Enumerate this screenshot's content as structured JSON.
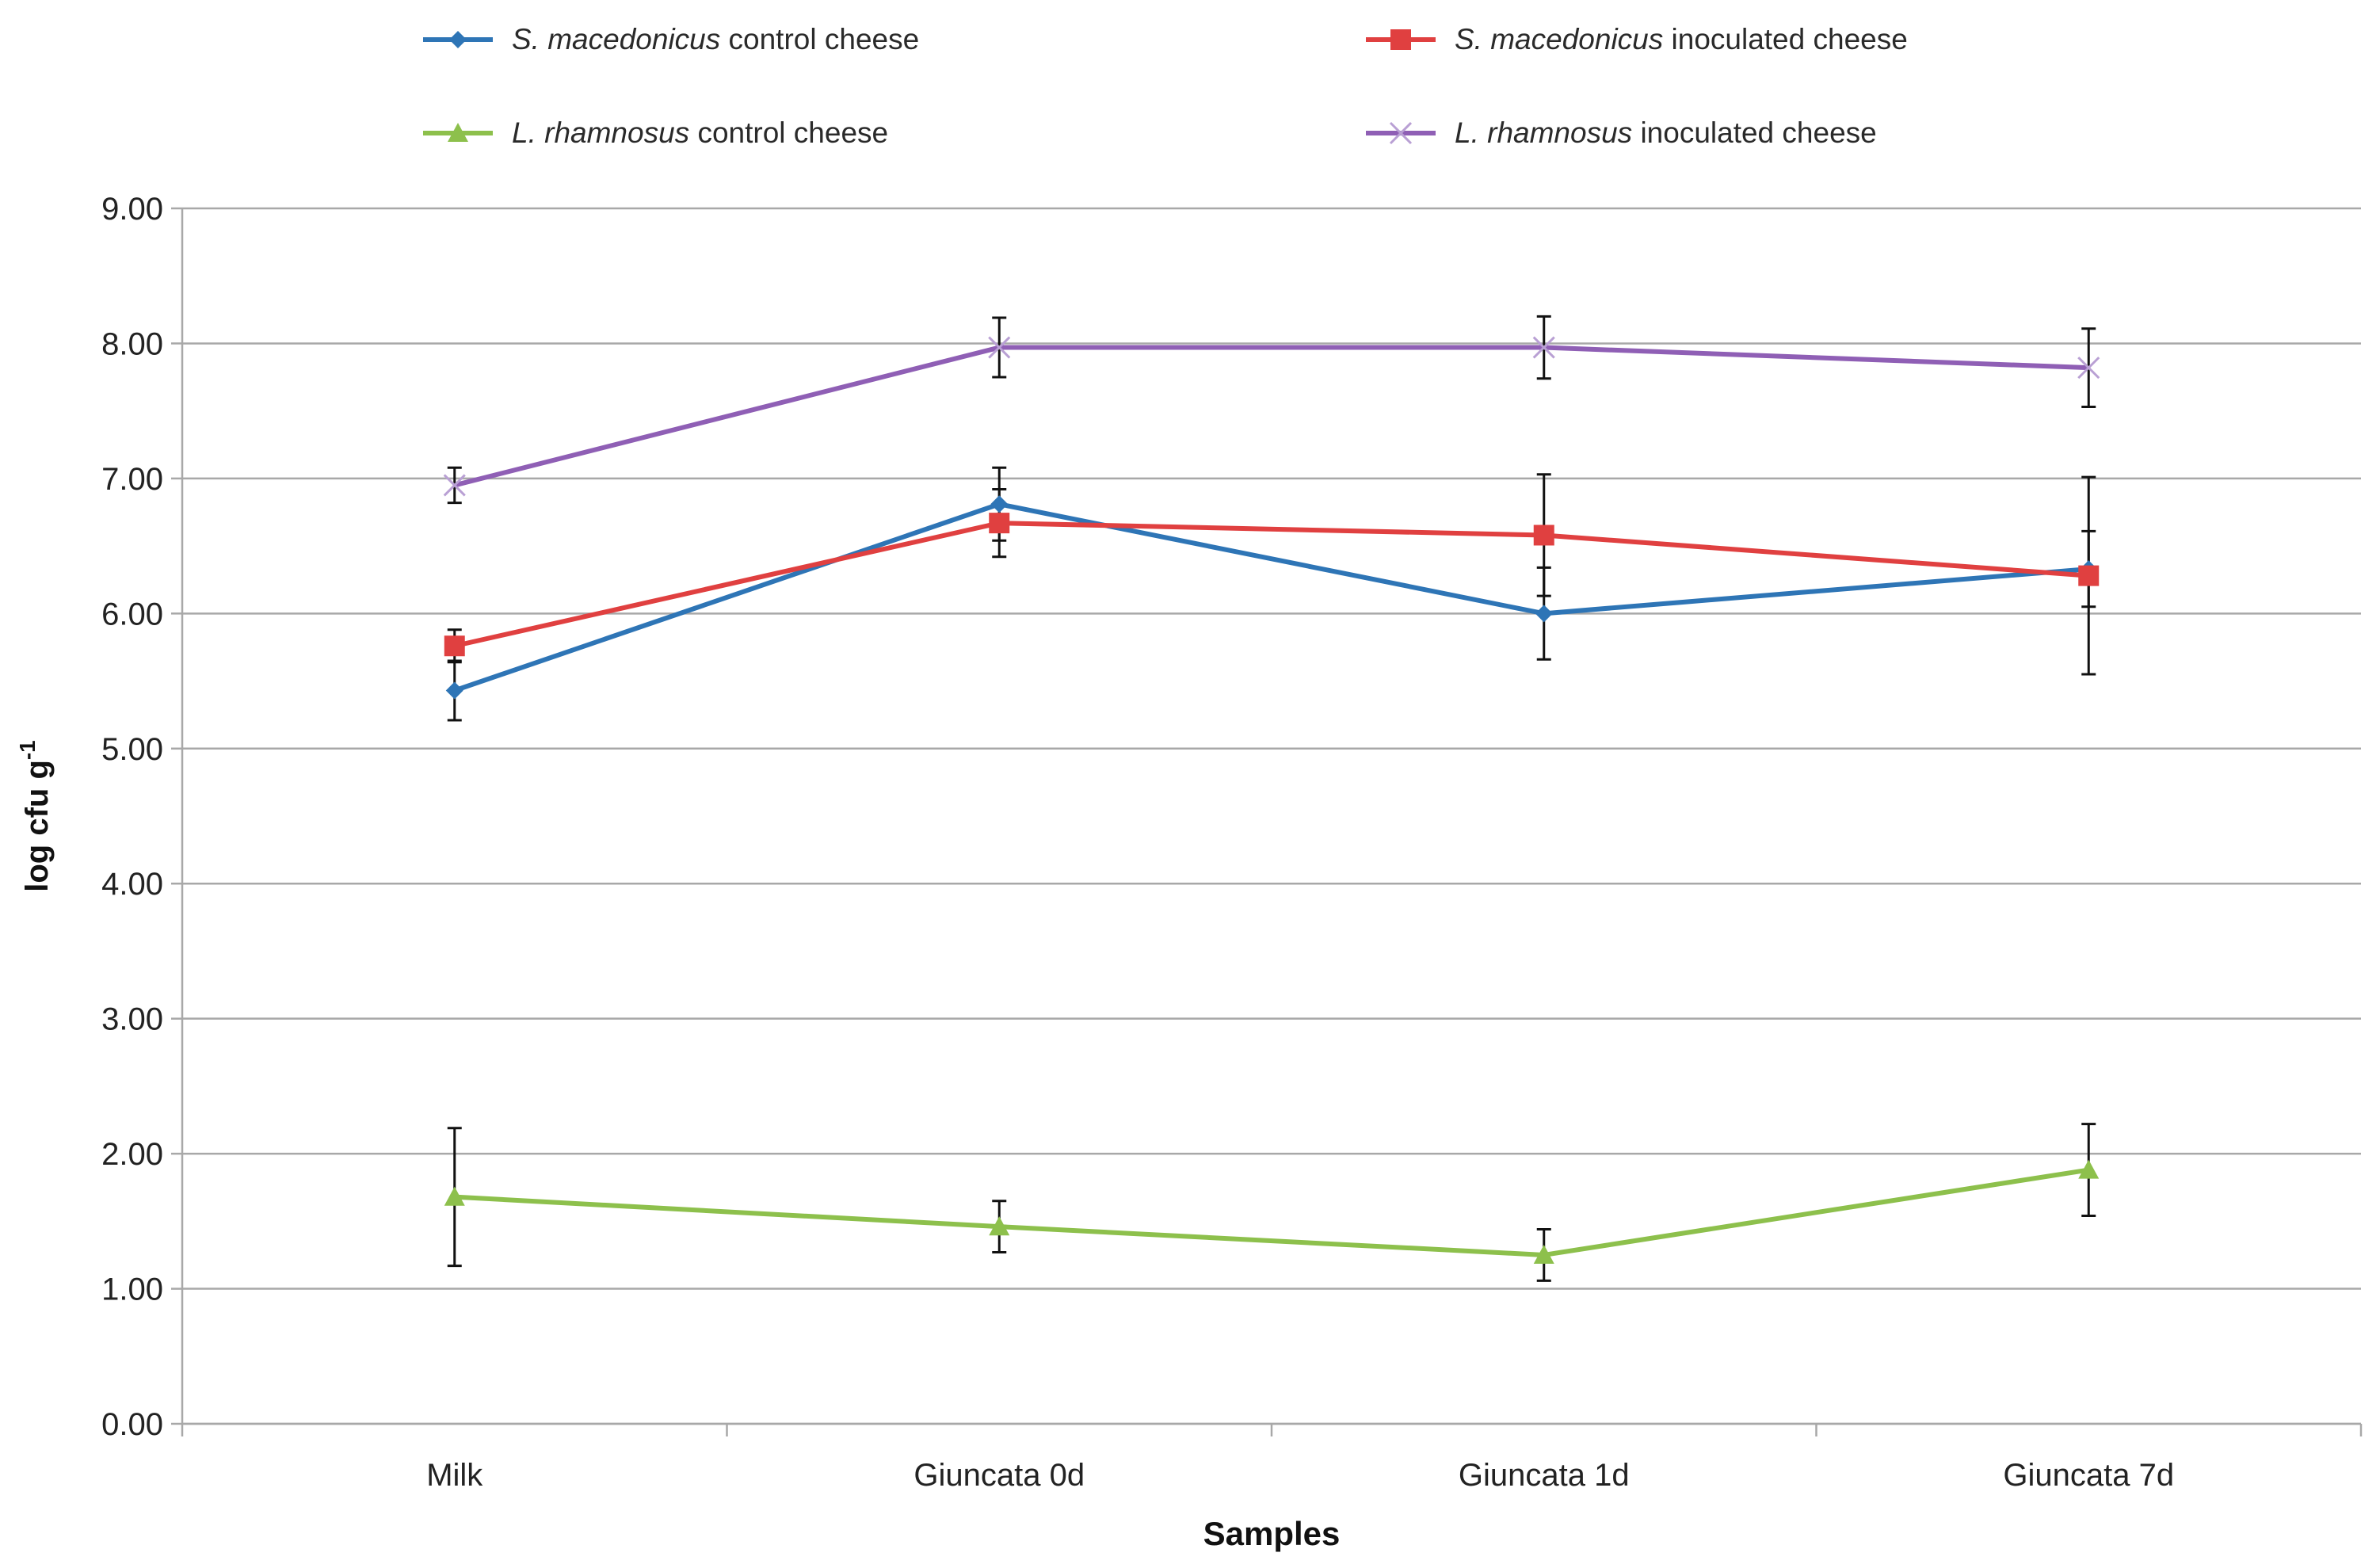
{
  "chart_data": {
    "type": "line",
    "title": "",
    "xlabel": "Samples",
    "ylabel": "log cfu g",
    "ylabel_superscript": "-1",
    "ylim": [
      0,
      9
    ],
    "y_ticks": [
      "0.00",
      "1.00",
      "2.00",
      "3.00",
      "4.00",
      "5.00",
      "6.00",
      "7.00",
      "8.00",
      "9.00"
    ],
    "categories": [
      "Milk",
      "Giuncata 0d",
      "Giuncata 1d",
      "Giuncata 7d"
    ],
    "grid": true,
    "legend_position": "top",
    "series": [
      {
        "name": "S. macedonicus control cheese",
        "name_italic": "S. macedonicus",
        "name_rest": " control cheese",
        "color": "#2e75b6",
        "marker": "diamond",
        "values": [
          5.43,
          6.81,
          6.0,
          6.33
        ],
        "error": [
          0.22,
          0.27,
          0.34,
          0.28
        ]
      },
      {
        "name": "S. macedonicus inoculated cheese",
        "name_italic": "S. macedonicus",
        "name_rest": " inoculated cheese",
        "color": "#e04040",
        "marker": "square",
        "values": [
          5.76,
          6.67,
          6.58,
          6.28
        ],
        "error": [
          0.12,
          0.25,
          0.45,
          0.73
        ]
      },
      {
        "name": "L. rhamnosus control cheese",
        "name_italic": "L. rhamnosus",
        "name_rest": " control cheese",
        "color": "#8dc04c",
        "marker": "triangle",
        "values": [
          1.68,
          1.46,
          1.25,
          1.88
        ],
        "error": [
          0.51,
          0.19,
          0.19,
          0.34
        ]
      },
      {
        "name": "L. rhamnosus inoculated cheese",
        "name_italic": "L. rhamnosus",
        "name_rest": " inoculated cheese",
        "color": "#8f5fb5",
        "marker": "x",
        "values": [
          6.95,
          7.97,
          7.97,
          7.82
        ],
        "error": [
          0.13,
          0.22,
          0.23,
          0.29
        ]
      }
    ]
  }
}
